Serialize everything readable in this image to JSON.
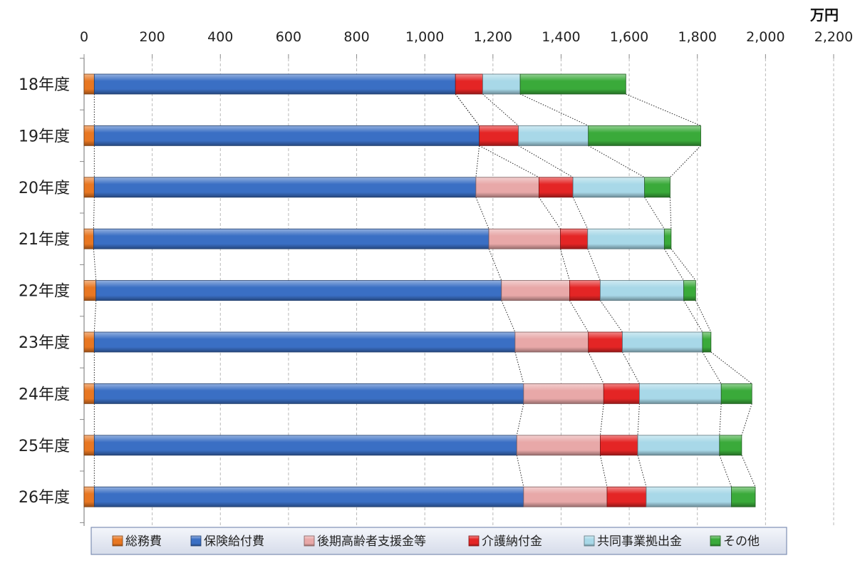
{
  "chart_data": {
    "type": "bar",
    "orientation": "horizontal",
    "stacked": true,
    "unit_label": "万円",
    "xlim": [
      0,
      2200
    ],
    "xticks": [
      0,
      200,
      400,
      600,
      800,
      1000,
      1200,
      1400,
      1600,
      1800,
      2000,
      2200
    ],
    "xtick_labels": [
      "0",
      "200",
      "400",
      "600",
      "800",
      "1,000",
      "1,200",
      "1,400",
      "1,600",
      "1,800",
      "2,000",
      "2,200"
    ],
    "grid": "vertical-dashed",
    "legend_position": "bottom",
    "categories": [
      "18年度",
      "19年度",
      "20年度",
      "21年度",
      "22年度",
      "23年度",
      "24年度",
      "25年度",
      "26年度"
    ],
    "connector_lines": true,
    "series": [
      {
        "name": "総務費",
        "color": "#e87722",
        "values": [
          30,
          30,
          30,
          28,
          35,
          30,
          30,
          30,
          30
        ]
      },
      {
        "name": "保険給付費",
        "color": "#3a6fc4",
        "values": [
          1060,
          1130,
          1120,
          1160,
          1190,
          1235,
          1260,
          1240,
          1260
        ]
      },
      {
        "name": "後期高齢者支援金等",
        "color": "#e8a8a8",
        "values": [
          0,
          0,
          185,
          210,
          200,
          215,
          235,
          245,
          245
        ]
      },
      {
        "name": "介護納付金",
        "color": "#e42525",
        "values": [
          80,
          115,
          100,
          80,
          90,
          100,
          105,
          110,
          115
        ]
      },
      {
        "name": "共同事業拠出金",
        "color": "#a8d8e8",
        "values": [
          110,
          205,
          210,
          225,
          245,
          235,
          240,
          240,
          250
        ]
      },
      {
        "name": "その他",
        "color": "#3aaa3a",
        "values": [
          310,
          330,
          75,
          20,
          35,
          25,
          90,
          65,
          70
        ]
      }
    ]
  }
}
